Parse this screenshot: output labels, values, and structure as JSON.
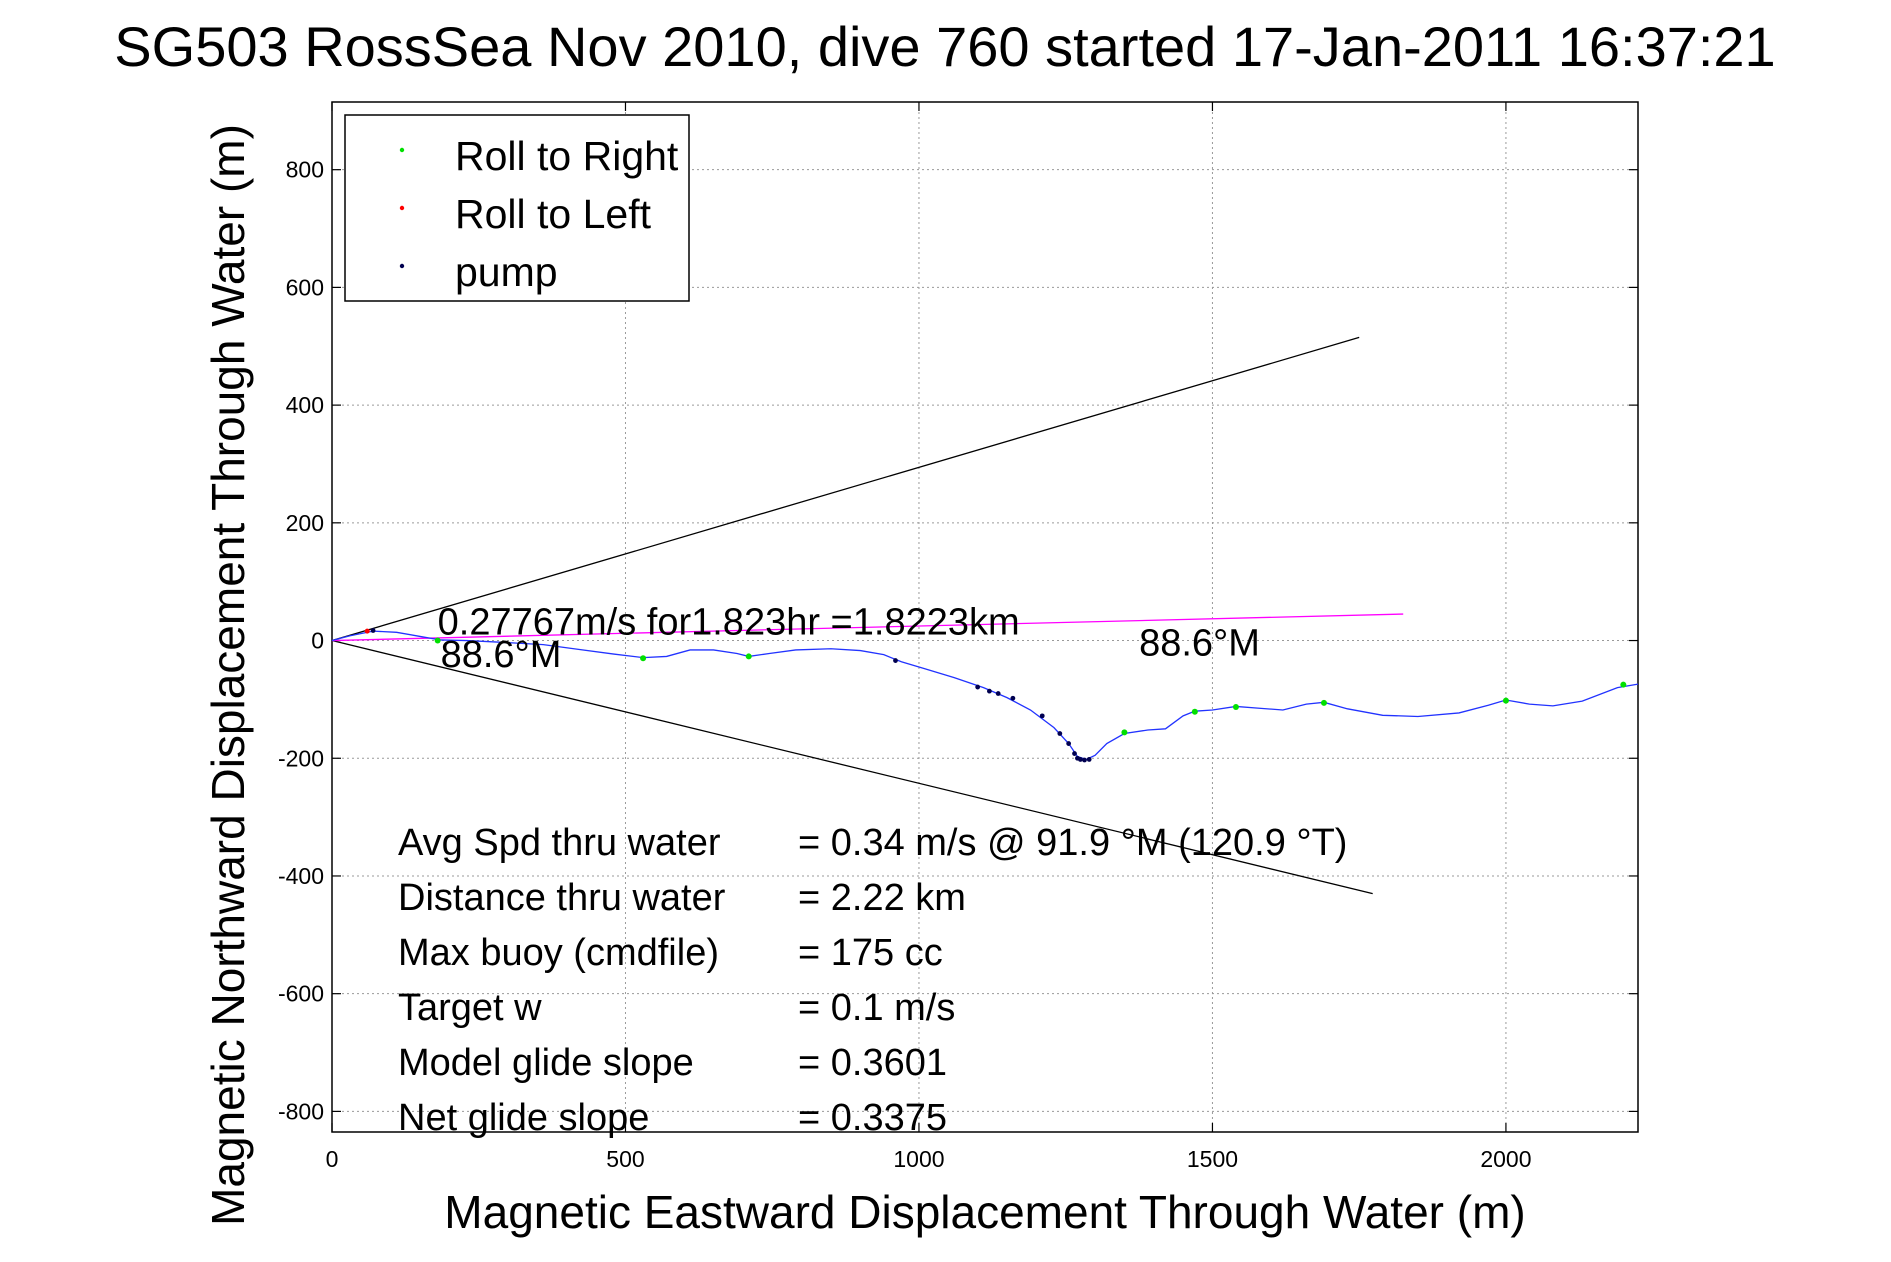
{
  "chart_data": {
    "type": "line",
    "title": "SG503 RossSea Nov 2010, dive 760 started 17-Jan-2011 16:37:21",
    "xlabel": "Magnetic Eastward Displacement Through Water (m)",
    "ylabel": "Magnetic Northward Displacement Through Water (m)",
    "xlim": [
      0,
      2225
    ],
    "ylim": [
      -835,
      915
    ],
    "xticks": [
      0,
      500,
      1000,
      1500,
      2000
    ],
    "yticks": [
      -800,
      -600,
      -400,
      -200,
      0,
      200,
      400,
      600,
      800
    ],
    "grid": true,
    "legend": {
      "placement": "top-left",
      "entries": [
        {
          "label": "Roll to Right",
          "color": "#00e000"
        },
        {
          "label": "Roll to Left",
          "color": "#ff0000"
        },
        {
          "label": "pump",
          "color": "#000050"
        }
      ]
    },
    "track": {
      "color": "#2233ff",
      "points": [
        [
          0,
          0
        ],
        [
          30,
          8
        ],
        [
          70,
          16
        ],
        [
          110,
          14
        ],
        [
          150,
          7
        ],
        [
          185,
          1
        ],
        [
          230,
          0
        ],
        [
          290,
          -3
        ],
        [
          360,
          -7
        ],
        [
          420,
          -15
        ],
        [
          480,
          -23
        ],
        [
          530,
          -29
        ],
        [
          570,
          -27
        ],
        [
          610,
          -16
        ],
        [
          650,
          -16
        ],
        [
          690,
          -22
        ],
        [
          710,
          -27
        ],
        [
          745,
          -22
        ],
        [
          790,
          -16
        ],
        [
          850,
          -14
        ],
        [
          900,
          -17
        ],
        [
          940,
          -24
        ],
        [
          970,
          -36
        ],
        [
          1010,
          -48
        ],
        [
          1060,
          -63
        ],
        [
          1110,
          -80
        ],
        [
          1150,
          -97
        ],
        [
          1190,
          -118
        ],
        [
          1230,
          -148
        ],
        [
          1255,
          -175
        ],
        [
          1270,
          -197
        ],
        [
          1285,
          -202
        ],
        [
          1300,
          -195
        ],
        [
          1320,
          -175
        ],
        [
          1350,
          -158
        ],
        [
          1390,
          -152
        ],
        [
          1420,
          -150
        ],
        [
          1450,
          -128
        ],
        [
          1470,
          -120
        ],
        [
          1500,
          -118
        ],
        [
          1540,
          -112
        ],
        [
          1580,
          -115
        ],
        [
          1620,
          -118
        ],
        [
          1660,
          -108
        ],
        [
          1690,
          -105
        ],
        [
          1730,
          -116
        ],
        [
          1790,
          -127
        ],
        [
          1850,
          -129
        ],
        [
          1920,
          -123
        ],
        [
          1970,
          -110
        ],
        [
          2000,
          -101
        ],
        [
          2040,
          -108
        ],
        [
          2080,
          -111
        ],
        [
          2130,
          -103
        ],
        [
          2190,
          -80
        ],
        [
          2225,
          -74
        ]
      ]
    },
    "roll_right_points": [
      [
        180,
        0
      ],
      [
        530,
        -30
      ],
      [
        710,
        -27
      ],
      [
        1350,
        -156
      ],
      [
        1470,
        -121
      ],
      [
        1540,
        -113
      ],
      [
        1690,
        -106
      ],
      [
        2000,
        -102
      ],
      [
        2200,
        -75
      ]
    ],
    "roll_left_points": [
      [
        60,
        16
      ]
    ],
    "pump_points": [
      [
        70,
        17
      ],
      [
        960,
        -34
      ],
      [
        1100,
        -79
      ],
      [
        1120,
        -86
      ],
      [
        1135,
        -90
      ],
      [
        1160,
        -98
      ],
      [
        1210,
        -128
      ],
      [
        1240,
        -158
      ],
      [
        1255,
        -175
      ],
      [
        1265,
        -192
      ],
      [
        1270,
        -200
      ],
      [
        1275,
        -202
      ],
      [
        1282,
        -203
      ],
      [
        1290,
        -202
      ]
    ],
    "wedge_upper": {
      "color": "#000000",
      "points": [
        [
          0,
          0
        ],
        [
          1750,
          515
        ]
      ]
    },
    "wedge_lower": {
      "color": "#000000",
      "points": [
        [
          0,
          0
        ],
        [
          1773,
          -430
        ]
      ]
    },
    "current_line": {
      "color": "#ff00ff",
      "points": [
        [
          0,
          0
        ],
        [
          1825,
          45
        ]
      ]
    },
    "annotations": [
      {
        "text": "0.27767m/s for1.823hr =1.8223km",
        "x": 180,
        "y": 10
      },
      {
        "text": "88.6°M",
        "x": 185,
        "y": -45
      },
      {
        "text": "88.6°M",
        "x": 1375,
        "y": -25
      }
    ],
    "stats": [
      {
        "label": "Avg Spd thru water",
        "value": "=  0.34 m/s @  91.9 °M (120.9 °T)"
      },
      {
        "label": "Distance thru water",
        "value": "=  2.22 km"
      },
      {
        "label": "Max buoy (cmdfile)",
        "value": "= 175 cc"
      },
      {
        "label": "Target w",
        "value": "= 0.1 m/s"
      },
      {
        "label": "Model glide slope",
        "value": "= 0.3601"
      },
      {
        "label": "Net glide slope",
        "value": "= 0.3375"
      }
    ]
  }
}
